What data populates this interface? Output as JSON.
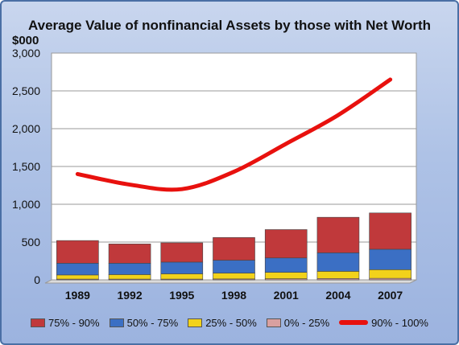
{
  "chart_data": {
    "type": "bar",
    "title": "Average Value of nonfinancial Assets by those with Net Worth",
    "y_unit": "$000",
    "categories": [
      "1989",
      "1992",
      "1995",
      "1998",
      "2001",
      "2004",
      "2007"
    ],
    "ylim": [
      0,
      3000
    ],
    "yticks": [
      "0",
      "500",
      "1,000",
      "1,500",
      "2,000",
      "2,500",
      "3,000"
    ],
    "ytick_values": [
      0,
      500,
      1000,
      1500,
      2000,
      2500,
      3000
    ],
    "grid": true,
    "legend_position": "bottom",
    "series": [
      {
        "name": "0% - 25%",
        "kind": "stacked-bar",
        "color": "#d9a0a0",
        "values": [
          10,
          10,
          10,
          12,
          15,
          18,
          20
        ]
      },
      {
        "name": "25% - 50%",
        "kind": "stacked-bar",
        "color": "#f2d21b",
        "values": [
          55,
          60,
          70,
          78,
          85,
          95,
          115
        ]
      },
      {
        "name": "50% - 75%",
        "kind": "stacked-bar",
        "color": "#3b6fc4",
        "values": [
          155,
          150,
          155,
          170,
          190,
          245,
          270
        ]
      },
      {
        "name": "75% - 90%",
        "kind": "stacked-bar",
        "color": "#c0393b",
        "values": [
          300,
          255,
          255,
          300,
          375,
          470,
          480
        ]
      },
      {
        "name": "90% - 100%",
        "kind": "line",
        "color": "#e8110e",
        "values": [
          1400,
          1260,
          1200,
          1430,
          1800,
          2180,
          2650
        ]
      }
    ]
  },
  "legend_order": [
    "75% - 90%",
    "50% - 75%",
    "25% - 50%",
    "0% - 25%",
    "90% - 100%"
  ]
}
